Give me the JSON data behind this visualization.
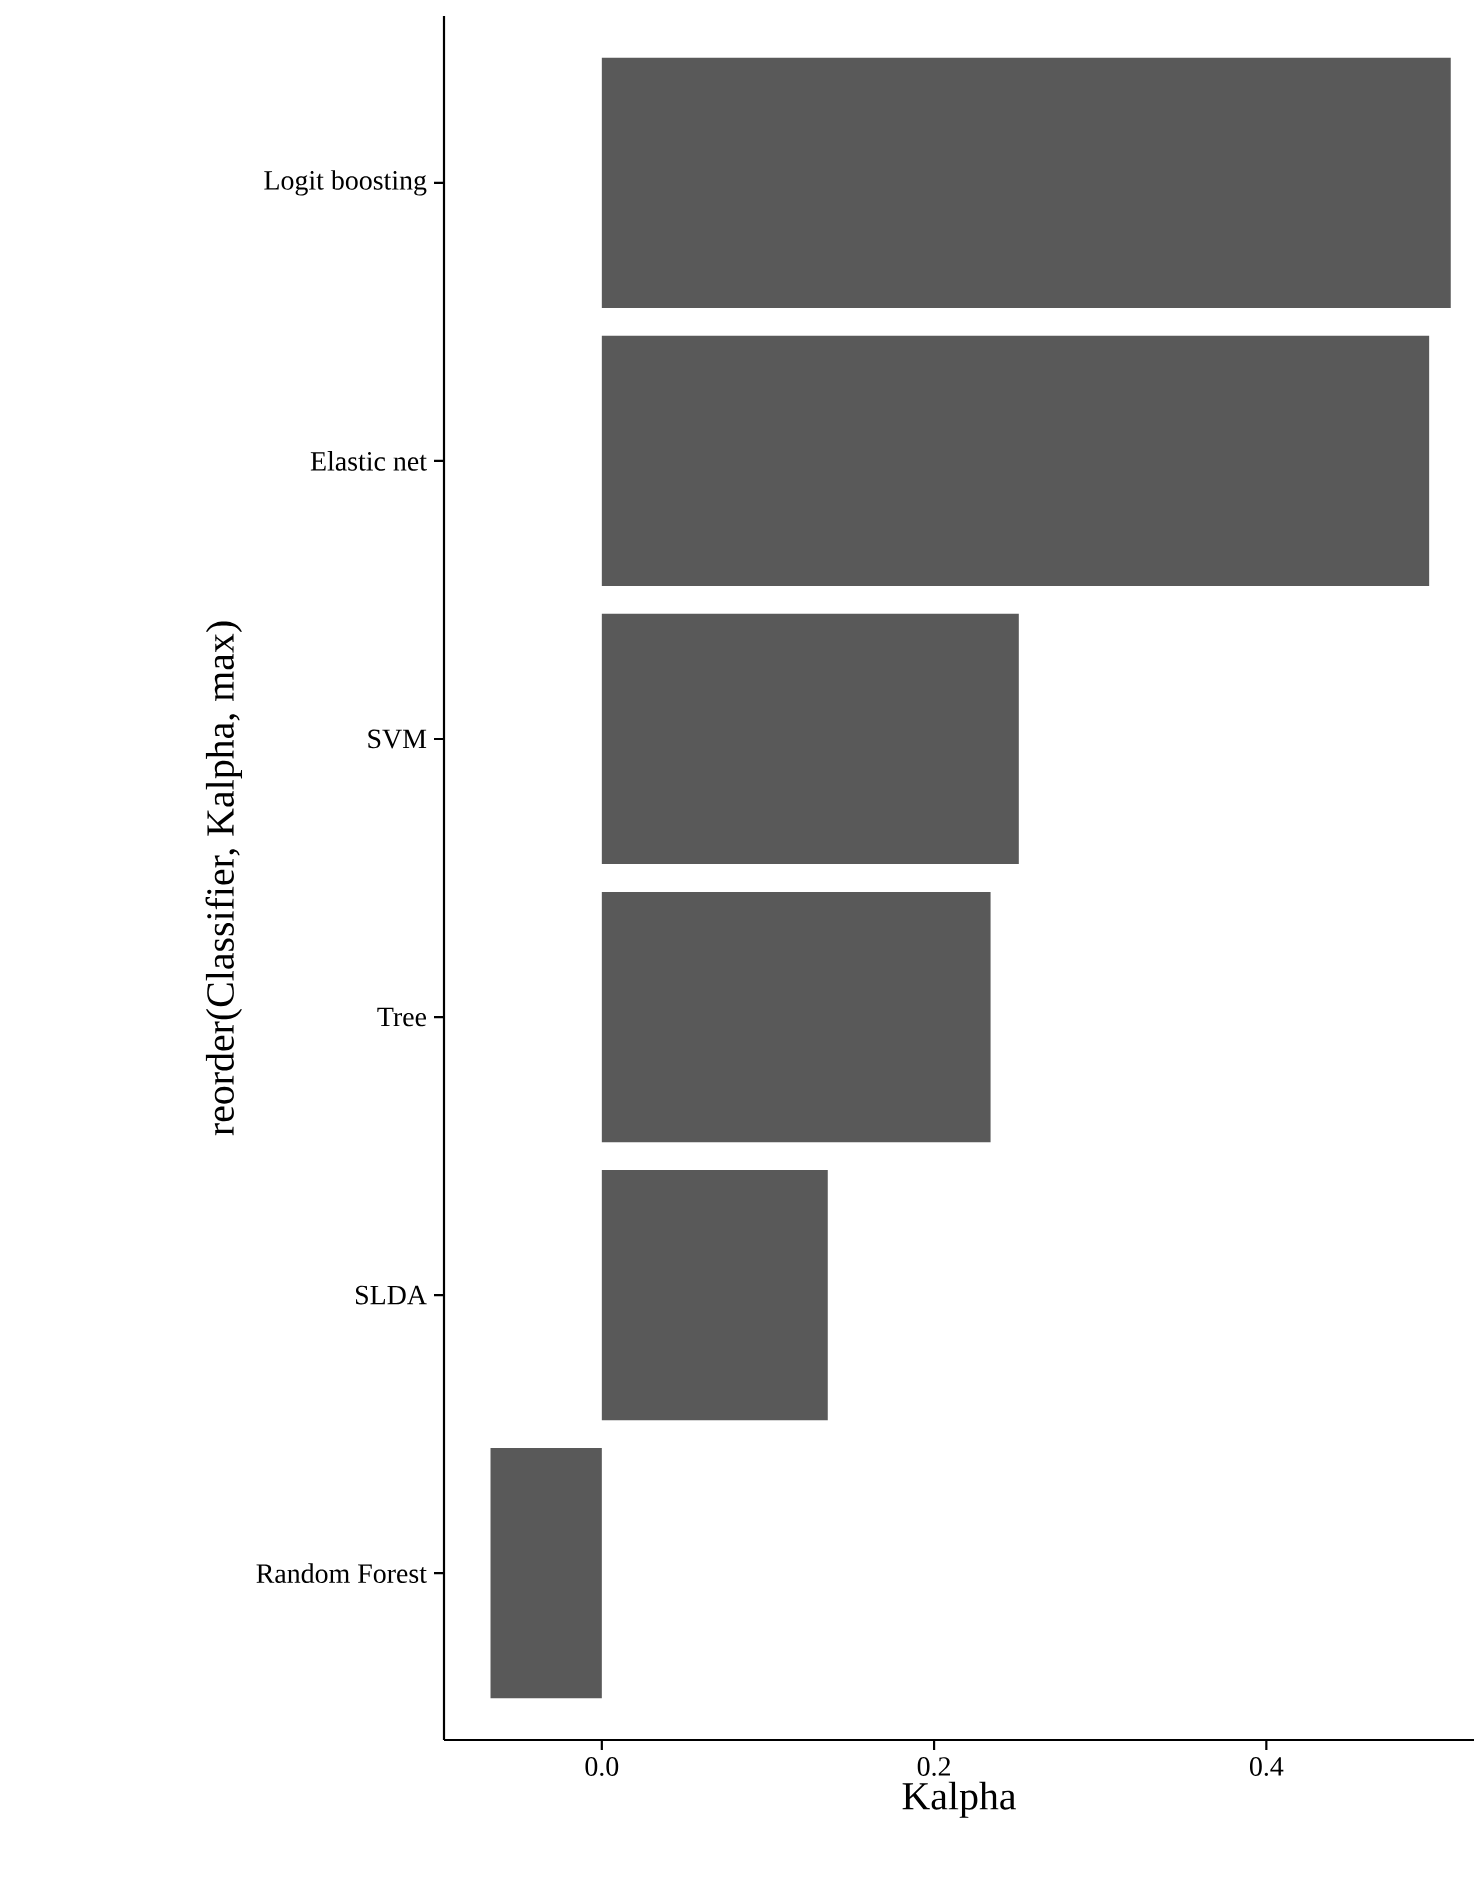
{
  "chart_data": {
    "type": "bar",
    "orientation": "horizontal",
    "categories": [
      "Logit boosting",
      "Elastic net",
      "SVM",
      "Tree",
      "SLDA",
      "Random Forest"
    ],
    "values": [
      0.511,
      0.498,
      0.251,
      0.234,
      0.136,
      -0.067
    ],
    "color": "#595959",
    "xlim": [
      -0.095,
      0.525
    ],
    "xticks": [
      {
        "value": 0,
        "label": "0.0"
      },
      0.2,
      0.4
    ],
    "xlabel": "Kalpha",
    "ylabel": "reorder(Classifier, Kalpha, max)"
  }
}
